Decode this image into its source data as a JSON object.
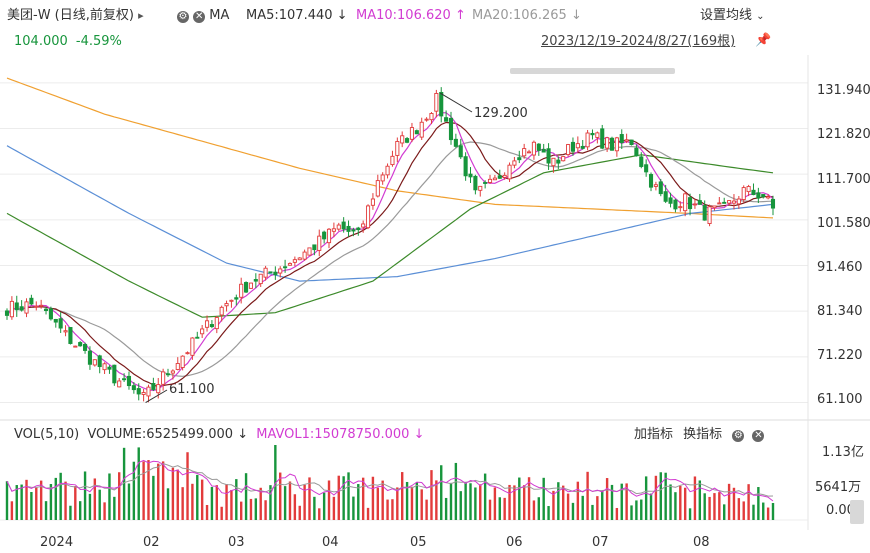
{
  "header": {
    "stock_name": "美团-W (日线,前复权)",
    "play_glyph": "▸",
    "ma_label": "MA",
    "ma5": "MA5:107.440",
    "ma5_arrow": "↓",
    "ma10": "MA10:106.620",
    "ma10_arrow": "↑",
    "ma20": "MA20:106.265",
    "ma20_arrow": "↓",
    "settings_label": "设置均线",
    "price": "104.000",
    "change_pct": "-4.59%",
    "date_range": "2023/12/19-2024/8/27(169根)"
  },
  "volume_header": {
    "label": "VOL(5,10)",
    "volume": "VOLUME:6525499.000",
    "volume_arrow": "↓",
    "mavol": "MAVOL1:15078750.000",
    "mavol_arrow": "↓",
    "add_indicator": "加指标",
    "switch_indicator": "换指标"
  },
  "annotations": {
    "high": "129.200",
    "low": "61.100"
  },
  "colors": {
    "up": "#e23b3b",
    "down": "#17953c",
    "ma5": "#d23cd2",
    "ma10": "#7b1a1a",
    "ma20": "#9a9a9a",
    "ma60": "#3c8a2a",
    "ma120": "#5b8fd6",
    "ma250": "#f0a030"
  },
  "chart_data": {
    "type": "candlestick",
    "price_axis": {
      "ticks": [
        131.94,
        121.82,
        111.7,
        101.58,
        91.46,
        81.34,
        71.22,
        61.1
      ],
      "tick_labels": [
        "131.940",
        "121.820",
        "111.700",
        "101.580",
        "91.460",
        "81.340",
        "71.220",
        "61.100"
      ],
      "range": [
        59,
        137
      ]
    },
    "volume_axis": {
      "tick_labels": [
        "1.13亿",
        "5641万",
        "0.000"
      ],
      "range": [
        0,
        113000000
      ]
    },
    "x_labels": [
      "2024",
      "02",
      "03",
      "04",
      "05",
      "06",
      "07",
      "08"
    ],
    "price_keypoints": [
      {
        "i": 0,
        "v": 82
      },
      {
        "i": 6,
        "v": 83
      },
      {
        "i": 12,
        "v": 76
      },
      {
        "i": 18,
        "v": 70
      },
      {
        "i": 24,
        "v": 65
      },
      {
        "i": 28,
        "v": 62
      },
      {
        "i": 33,
        "v": 68
      },
      {
        "i": 38,
        "v": 74
      },
      {
        "i": 44,
        "v": 82
      },
      {
        "i": 50,
        "v": 88
      },
      {
        "i": 56,
        "v": 91
      },
      {
        "i": 62,
        "v": 95
      },
      {
        "i": 68,
        "v": 100
      },
      {
        "i": 72,
        "v": 98
      },
      {
        "i": 76,
        "v": 110
      },
      {
        "i": 80,
        "v": 118
      },
      {
        "i": 84,
        "v": 122
      },
      {
        "i": 88,
        "v": 128
      },
      {
        "i": 92,
        "v": 118
      },
      {
        "i": 96,
        "v": 107
      },
      {
        "i": 100,
        "v": 110
      },
      {
        "i": 104,
        "v": 116
      },
      {
        "i": 108,
        "v": 118
      },
      {
        "i": 112,
        "v": 114
      },
      {
        "i": 116,
        "v": 118
      },
      {
        "i": 120,
        "v": 120
      },
      {
        "i": 124,
        "v": 118
      },
      {
        "i": 128,
        "v": 119
      },
      {
        "i": 131,
        "v": 112
      },
      {
        "i": 135,
        "v": 105
      },
      {
        "i": 139,
        "v": 106
      },
      {
        "i": 143,
        "v": 103
      },
      {
        "i": 147,
        "v": 104
      },
      {
        "i": 151,
        "v": 108
      },
      {
        "i": 155,
        "v": 107
      },
      {
        "i": 157,
        "v": 104
      }
    ],
    "ma_keypoints": {
      "ma60": [
        {
          "i": 0,
          "v": 103
        },
        {
          "i": 25,
          "v": 88
        },
        {
          "i": 40,
          "v": 80
        },
        {
          "i": 55,
          "v": 81
        },
        {
          "i": 75,
          "v": 88
        },
        {
          "i": 95,
          "v": 104
        },
        {
          "i": 110,
          "v": 112
        },
        {
          "i": 130,
          "v": 116
        },
        {
          "i": 150,
          "v": 113
        },
        {
          "i": 157,
          "v": 112
        }
      ],
      "ma120": [
        {
          "i": 0,
          "v": 118
        },
        {
          "i": 25,
          "v": 103
        },
        {
          "i": 45,
          "v": 92
        },
        {
          "i": 60,
          "v": 88
        },
        {
          "i": 80,
          "v": 89
        },
        {
          "i": 100,
          "v": 93
        },
        {
          "i": 120,
          "v": 98
        },
        {
          "i": 140,
          "v": 103
        },
        {
          "i": 157,
          "v": 105
        }
      ],
      "ma250": [
        {
          "i": 0,
          "v": 133
        },
        {
          "i": 20,
          "v": 125
        },
        {
          "i": 40,
          "v": 119
        },
        {
          "i": 60,
          "v": 113
        },
        {
          "i": 80,
          "v": 108
        },
        {
          "i": 100,
          "v": 105
        },
        {
          "i": 120,
          "v": 104
        },
        {
          "i": 140,
          "v": 103
        },
        {
          "i": 157,
          "v": 102
        }
      ]
    }
  }
}
